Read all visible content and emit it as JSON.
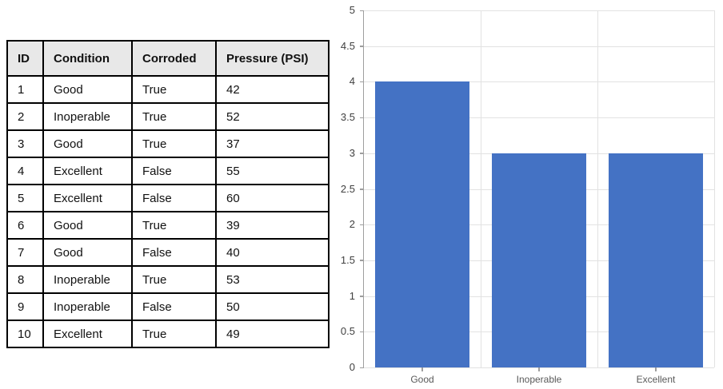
{
  "table": {
    "columns": [
      "ID",
      "Condition",
      "Corroded",
      "Pressure (PSI)"
    ],
    "rows": [
      [
        "1",
        "Good",
        "True",
        "42"
      ],
      [
        "2",
        "Inoperable",
        "True",
        "52"
      ],
      [
        "3",
        "Good",
        "True",
        "37"
      ],
      [
        "4",
        "Excellent",
        "False",
        "55"
      ],
      [
        "5",
        "Excellent",
        "False",
        "60"
      ],
      [
        "6",
        "Good",
        "True",
        "39"
      ],
      [
        "7",
        "Good",
        "False",
        "40"
      ],
      [
        "8",
        "Inoperable",
        "True",
        "53"
      ],
      [
        "9",
        "Inoperable",
        "False",
        "50"
      ],
      [
        "10",
        "Excellent",
        "True",
        "49"
      ]
    ]
  },
  "chart_data": {
    "type": "bar",
    "categories": [
      "Good",
      "Inoperable",
      "Excellent"
    ],
    "values": [
      4,
      3,
      3
    ],
    "title": "",
    "xlabel": "",
    "ylabel": "",
    "ylim": [
      0,
      5
    ],
    "ytick_step": 0.5,
    "grid": true,
    "legend": "none",
    "bar_color": "#4472C4",
    "gridline_color": "#e2e2e2",
    "axis_color": "#9e9e9e",
    "ytick_label_color": "#404040",
    "xtick_label_color": "#595959"
  }
}
